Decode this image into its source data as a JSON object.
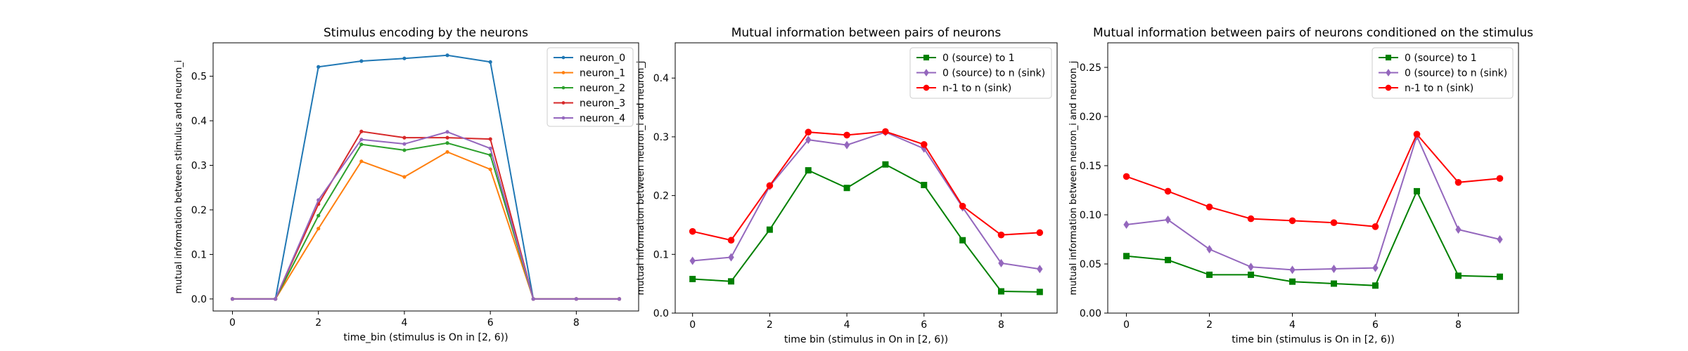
{
  "chart_data": [
    {
      "type": "line",
      "title": "Stimulus encoding by the neurons",
      "xlabel": "time_bin (stimulus is On in [2, 6))",
      "ylabel": "mutual information between stimulus and neuron_i",
      "x": [
        0,
        1,
        2,
        3,
        4,
        5,
        6,
        7,
        8,
        9
      ],
      "xlim": [
        -0.45,
        9.45
      ],
      "ylim": [
        -0.027,
        0.575
      ],
      "xticks": [
        0,
        2,
        4,
        6,
        8
      ],
      "yticks": [
        0.0,
        0.1,
        0.2,
        0.3,
        0.4,
        0.5
      ],
      "ytick_labels": [
        "0.0",
        "0.1",
        "0.2",
        "0.3",
        "0.4",
        "0.5"
      ],
      "legend_position": "top-right",
      "series": [
        {
          "name": "neuron_0",
          "color": "#1f77b4",
          "marker": "point",
          "values": [
            0.0,
            0.0,
            0.521,
            0.534,
            0.54,
            0.547,
            0.532,
            0.0,
            0.0,
            0.0
          ]
        },
        {
          "name": "neuron_1",
          "color": "#ff7f0e",
          "marker": "point",
          "values": [
            0.0,
            0.0,
            0.158,
            0.309,
            0.274,
            0.33,
            0.291,
            0.0,
            0.0,
            0.0
          ]
        },
        {
          "name": "neuron_2",
          "color": "#2ca02c",
          "marker": "point",
          "values": [
            0.0,
            0.0,
            0.187,
            0.347,
            0.334,
            0.35,
            0.323,
            0.0,
            0.0,
            0.0
          ]
        },
        {
          "name": "neuron_3",
          "color": "#d62728",
          "marker": "point",
          "values": [
            0.0,
            0.0,
            0.213,
            0.376,
            0.362,
            0.362,
            0.359,
            0.0,
            0.0,
            0.0
          ]
        },
        {
          "name": "neuron_4",
          "color": "#9467bd",
          "marker": "point",
          "values": [
            0.0,
            0.0,
            0.222,
            0.358,
            0.348,
            0.375,
            0.338,
            0.0,
            0.0,
            0.0
          ]
        }
      ]
    },
    {
      "type": "line",
      "title": "Mutual information between pairs of neurons",
      "xlabel": "time bin (stimulus in On in [2, 6))",
      "ylabel": "mutual information between neuron_i and neuron_j",
      "x": [
        0,
        1,
        2,
        3,
        4,
        5,
        6,
        7,
        8,
        9
      ],
      "xlim": [
        -0.45,
        9.45
      ],
      "ylim": [
        0.0,
        0.46
      ],
      "xticks": [
        0,
        2,
        4,
        6,
        8
      ],
      "yticks": [
        0.0,
        0.1,
        0.2,
        0.3,
        0.4
      ],
      "ytick_labels": [
        "0.0",
        "0.1",
        "0.2",
        "0.3",
        "0.4"
      ],
      "legend_position": "top-right",
      "series": [
        {
          "name": "0 (source) to 1",
          "color": "#008000",
          "marker": "square",
          "values": [
            0.058,
            0.054,
            0.142,
            0.243,
            0.213,
            0.253,
            0.218,
            0.124,
            0.037,
            0.036
          ]
        },
        {
          "name": "0 (source) to n (sink)",
          "color": "#9467bd",
          "marker": "diamond",
          "values": [
            0.089,
            0.095,
            0.216,
            0.295,
            0.286,
            0.308,
            0.28,
            0.18,
            0.085,
            0.075
          ]
        },
        {
          "name": "n-1 to n (sink)",
          "color": "#ff0000",
          "marker": "circle",
          "values": [
            0.139,
            0.124,
            0.217,
            0.308,
            0.303,
            0.309,
            0.287,
            0.182,
            0.133,
            0.137
          ]
        }
      ]
    },
    {
      "type": "line",
      "title": "Mutual information between pairs of neurons conditioned on the stimulus",
      "xlabel": "time bin (stimulus is On in [2, 6))",
      "ylabel": "mutual information between neuron_i and neuron_j",
      "x": [
        0,
        1,
        2,
        3,
        4,
        5,
        6,
        7,
        8,
        9
      ],
      "xlim": [
        -0.45,
        9.45
      ],
      "ylim": [
        0.0,
        0.275
      ],
      "xticks": [
        0,
        2,
        4,
        6,
        8
      ],
      "yticks": [
        0.0,
        0.05,
        0.1,
        0.15,
        0.2,
        0.25
      ],
      "ytick_labels": [
        "0.00",
        "0.05",
        "0.10",
        "0.15",
        "0.20",
        "0.25"
      ],
      "legend_position": "top-right",
      "series": [
        {
          "name": "0 (source) to 1",
          "color": "#008000",
          "marker": "square",
          "values": [
            0.058,
            0.054,
            0.039,
            0.039,
            0.032,
            0.03,
            0.028,
            0.124,
            0.038,
            0.037
          ]
        },
        {
          "name": "0 (source) to n (sink)",
          "color": "#9467bd",
          "marker": "diamond",
          "values": [
            0.09,
            0.095,
            0.065,
            0.047,
            0.044,
            0.045,
            0.046,
            0.18,
            0.085,
            0.075
          ]
        },
        {
          "name": "n-1 to n (sink)",
          "color": "#ff0000",
          "marker": "circle",
          "values": [
            0.139,
            0.124,
            0.108,
            0.096,
            0.094,
            0.092,
            0.088,
            0.182,
            0.133,
            0.137
          ]
        }
      ]
    }
  ]
}
